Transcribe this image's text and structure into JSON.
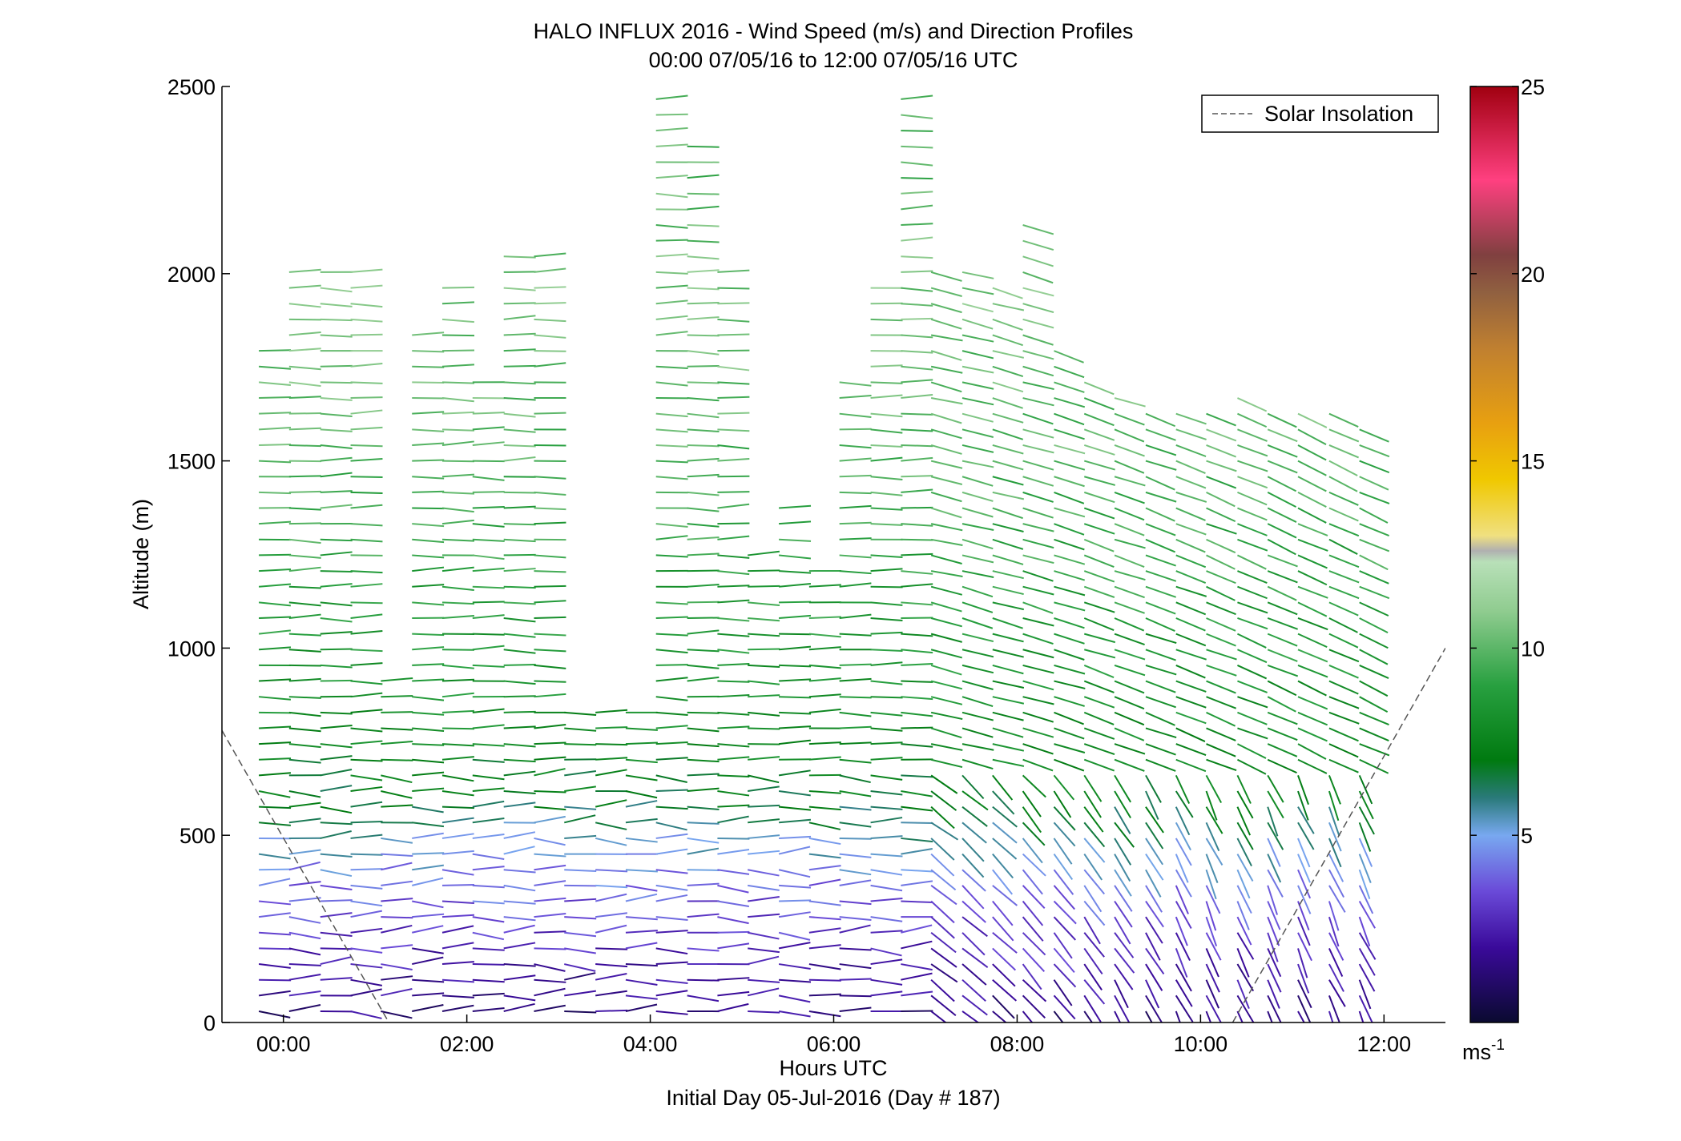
{
  "chart_data": {
    "type": "wind-barb-profile",
    "title": "HALO INFLUX 2016 - Wind Speed (m/s) and Direction Profiles",
    "subtitle": "00:00 07/05/16 to 12:00 07/05/16  UTC",
    "xlabel": "Hours UTC",
    "xlabel2": "Initial Day 05-Jul-2016 (Day # 187)",
    "ylabel": "Altitude (m)",
    "xlim": [
      -0.67,
      12.67
    ],
    "ylim": [
      0,
      2500
    ],
    "x_ticks": [
      {
        "value": 0,
        "label": "00:00"
      },
      {
        "value": 2,
        "label": "02:00"
      },
      {
        "value": 4,
        "label": "04:00"
      },
      {
        "value": 6,
        "label": "06:00"
      },
      {
        "value": 8,
        "label": "08:00"
      },
      {
        "value": 10,
        "label": "10:00"
      },
      {
        "value": 12,
        "label": "12:00"
      }
    ],
    "y_ticks": [
      {
        "value": 0,
        "label": "0"
      },
      {
        "value": 500,
        "label": "500"
      },
      {
        "value": 1000,
        "label": "1000"
      },
      {
        "value": 1500,
        "label": "1500"
      },
      {
        "value": 2000,
        "label": "2000"
      },
      {
        "value": 2500,
        "label": "2500"
      }
    ],
    "colorbar": {
      "range": [
        0,
        25
      ],
      "ticks": [
        {
          "value": 5,
          "label": "5"
        },
        {
          "value": 10,
          "label": "10"
        },
        {
          "value": 15,
          "label": "15"
        },
        {
          "value": 20,
          "label": "20"
        },
        {
          "value": 25,
          "label": "25"
        }
      ],
      "unit_base": "ms",
      "unit_exp": "-1",
      "stops": [
        {
          "v": 0,
          "c": "#0a0a30"
        },
        {
          "v": 2,
          "c": "#3a0a9a"
        },
        {
          "v": 3.5,
          "c": "#6a4ad8"
        },
        {
          "v": 5,
          "c": "#78a8f0"
        },
        {
          "v": 6,
          "c": "#2a7a7a"
        },
        {
          "v": 7,
          "c": "#007a10"
        },
        {
          "v": 9,
          "c": "#28a040"
        },
        {
          "v": 11,
          "c": "#90cc90"
        },
        {
          "v": 12.3,
          "c": "#b8e0b8"
        },
        {
          "v": 12.6,
          "c": "#b0b0b0"
        },
        {
          "v": 13,
          "c": "#f0e080"
        },
        {
          "v": 14.5,
          "c": "#f0c800"
        },
        {
          "v": 16,
          "c": "#e8a010"
        },
        {
          "v": 18,
          "c": "#c08030"
        },
        {
          "v": 19.5,
          "c": "#906040"
        },
        {
          "v": 20.5,
          "c": "#804040"
        },
        {
          "v": 22.5,
          "c": "#ff4080"
        },
        {
          "v": 25,
          "c": "#a00010"
        }
      ]
    },
    "legend": {
      "entries": [
        "Solar Insolation"
      ],
      "placement": "top-right"
    },
    "solar_insolation": [
      {
        "segment": [
          [
            -0.67,
            780
          ],
          [
            1.15,
            0
          ]
        ]
      },
      {
        "segment": [
          [
            10.35,
            0
          ],
          [
            12.67,
            1000
          ]
        ]
      }
    ],
    "profiles": {
      "times": [
        -0.25,
        0.08,
        0.42,
        0.75,
        1.08,
        1.42,
        1.75,
        2.08,
        2.42,
        2.75,
        3.08,
        3.42,
        3.75,
        4.08,
        4.42,
        4.75,
        5.08,
        5.42,
        5.75,
        6.08,
        6.42,
        6.75,
        7.08,
        7.42,
        7.75,
        8.08,
        8.42,
        8.75,
        9.08,
        9.42,
        9.75,
        10.08,
        10.42,
        10.75,
        11.08,
        11.42,
        11.75
      ],
      "top_altitude_m": [
        1830,
        2040,
        2040,
        2040,
        950,
        1860,
        1970,
        1730,
        2070,
        2080,
        830,
        840,
        830,
        2500,
        2360,
        2040,
        1280,
        1400,
        1240,
        1750,
        1980,
        2500,
        2040,
        2010,
        2000,
        2170,
        1830,
        1740,
        1700,
        1660,
        1660,
        1640,
        1680,
        1660,
        1650,
        1650,
        1590
      ],
      "gate_spacing_m": 42,
      "speed_profile": [
        {
          "alt": 0,
          "speed": 1.5
        },
        {
          "alt": 100,
          "speed": 2.0
        },
        {
          "alt": 250,
          "speed": 3.0
        },
        {
          "alt": 400,
          "speed": 4.5
        },
        {
          "alt": 500,
          "speed": 5.5
        },
        {
          "alt": 600,
          "speed": 7.0
        },
        {
          "alt": 800,
          "speed": 8.0
        },
        {
          "alt": 1200,
          "speed": 9.0
        },
        {
          "alt": 1600,
          "speed": 10.0
        },
        {
          "alt": 2000,
          "speed": 10.5
        },
        {
          "alt": 2500,
          "speed": 9.5
        }
      ]
    }
  }
}
